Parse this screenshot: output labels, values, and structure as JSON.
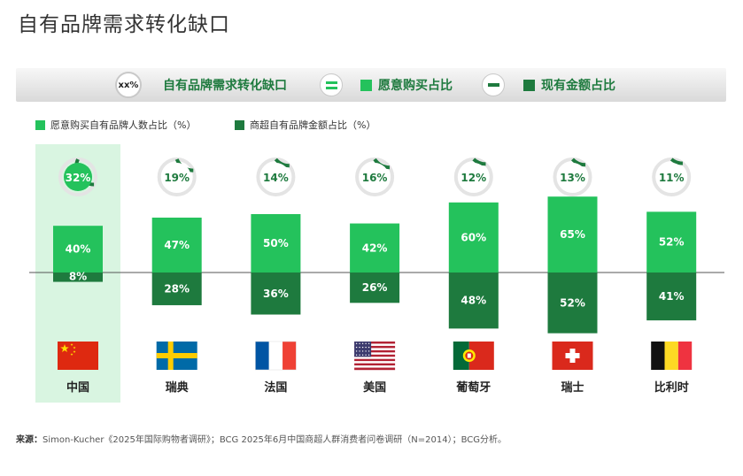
{
  "page": {
    "title": "自有品牌需求转化缺口"
  },
  "formula": {
    "badge": "xx%",
    "gap_label": "自有品牌需求转化缺口",
    "equals_icon": "equals-icon",
    "willing_label": "愿意购买占比",
    "minus_icon": "minus-icon",
    "actual_label": "现有金额占比"
  },
  "colors": {
    "willing": "#24c25c",
    "actual": "#1e7a3e",
    "highlight_bg": "#d9f5e1",
    "ring_track": "#e4e4e4"
  },
  "chart_data": {
    "type": "bar",
    "title": "",
    "categories": [
      "中国",
      "瑞典",
      "法国",
      "美国",
      "葡萄牙",
      "瑞士",
      "比利时"
    ],
    "category_icons": [
      "flag-china-icon",
      "flag-sweden-icon",
      "flag-france-icon",
      "flag-usa-icon",
      "flag-portugal-icon",
      "flag-switzerland-icon",
      "flag-belgium-icon"
    ],
    "highlight_category": "中国",
    "series": [
      {
        "name": "愿意购买自有品牌人数占比（%）",
        "values": [
          40,
          47,
          50,
          42,
          60,
          65,
          52
        ],
        "labels": [
          "40%",
          "47%",
          "50%",
          "42%",
          "60%",
          "65%",
          "52%"
        ],
        "direction": "up"
      },
      {
        "name": "商超自有品牌金额占比（%）",
        "values": [
          8,
          28,
          36,
          26,
          48,
          52,
          41
        ],
        "labels": [
          "8%",
          "28%",
          "36%",
          "26%",
          "48%",
          "52%",
          "41%"
        ],
        "direction": "down"
      }
    ],
    "gap": {
      "values": [
        32,
        19,
        14,
        16,
        12,
        13,
        11
      ],
      "labels": [
        "32%",
        "19%",
        "14%",
        "16%",
        "12%",
        "13%",
        "11%"
      ]
    },
    "legend_position": "top-left",
    "grid": false
  },
  "source": {
    "prefix": "来源：",
    "text": "Simon-Kucher《2025年国际购物者调研》；BCG 2025年6月中国商超人群消费者问卷调研（N=2014）；BCG分析。"
  }
}
